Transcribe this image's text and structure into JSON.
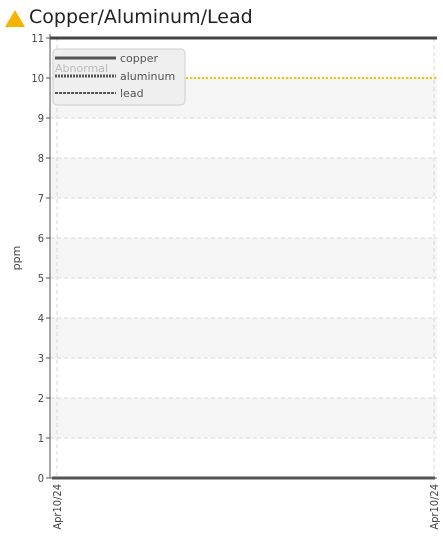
{
  "title": "Copper/Aluminum/Lead",
  "colors": {
    "warning": "#f5b400",
    "threshold": "#f5c400",
    "series": "#555555",
    "top_line": "#444444"
  },
  "chart_data": {
    "type": "line",
    "ylabel": "ppm",
    "ylim": [
      0,
      11
    ],
    "yticks": [
      0,
      1,
      2,
      3,
      4,
      5,
      6,
      7,
      8,
      9,
      10,
      11
    ],
    "x": [
      "Apr10/24",
      "Apr10/24"
    ],
    "series": [
      {
        "name": "copper",
        "values": [
          0,
          0
        ],
        "style": "solid"
      },
      {
        "name": "aluminum",
        "values": [
          0,
          0
        ],
        "style": "dotted"
      },
      {
        "name": "lead",
        "values": [
          0,
          0
        ],
        "style": "dashed"
      }
    ],
    "threshold": {
      "label": "Abnormal",
      "value": 10
    },
    "grid": true,
    "legend_placement": "top-left"
  }
}
